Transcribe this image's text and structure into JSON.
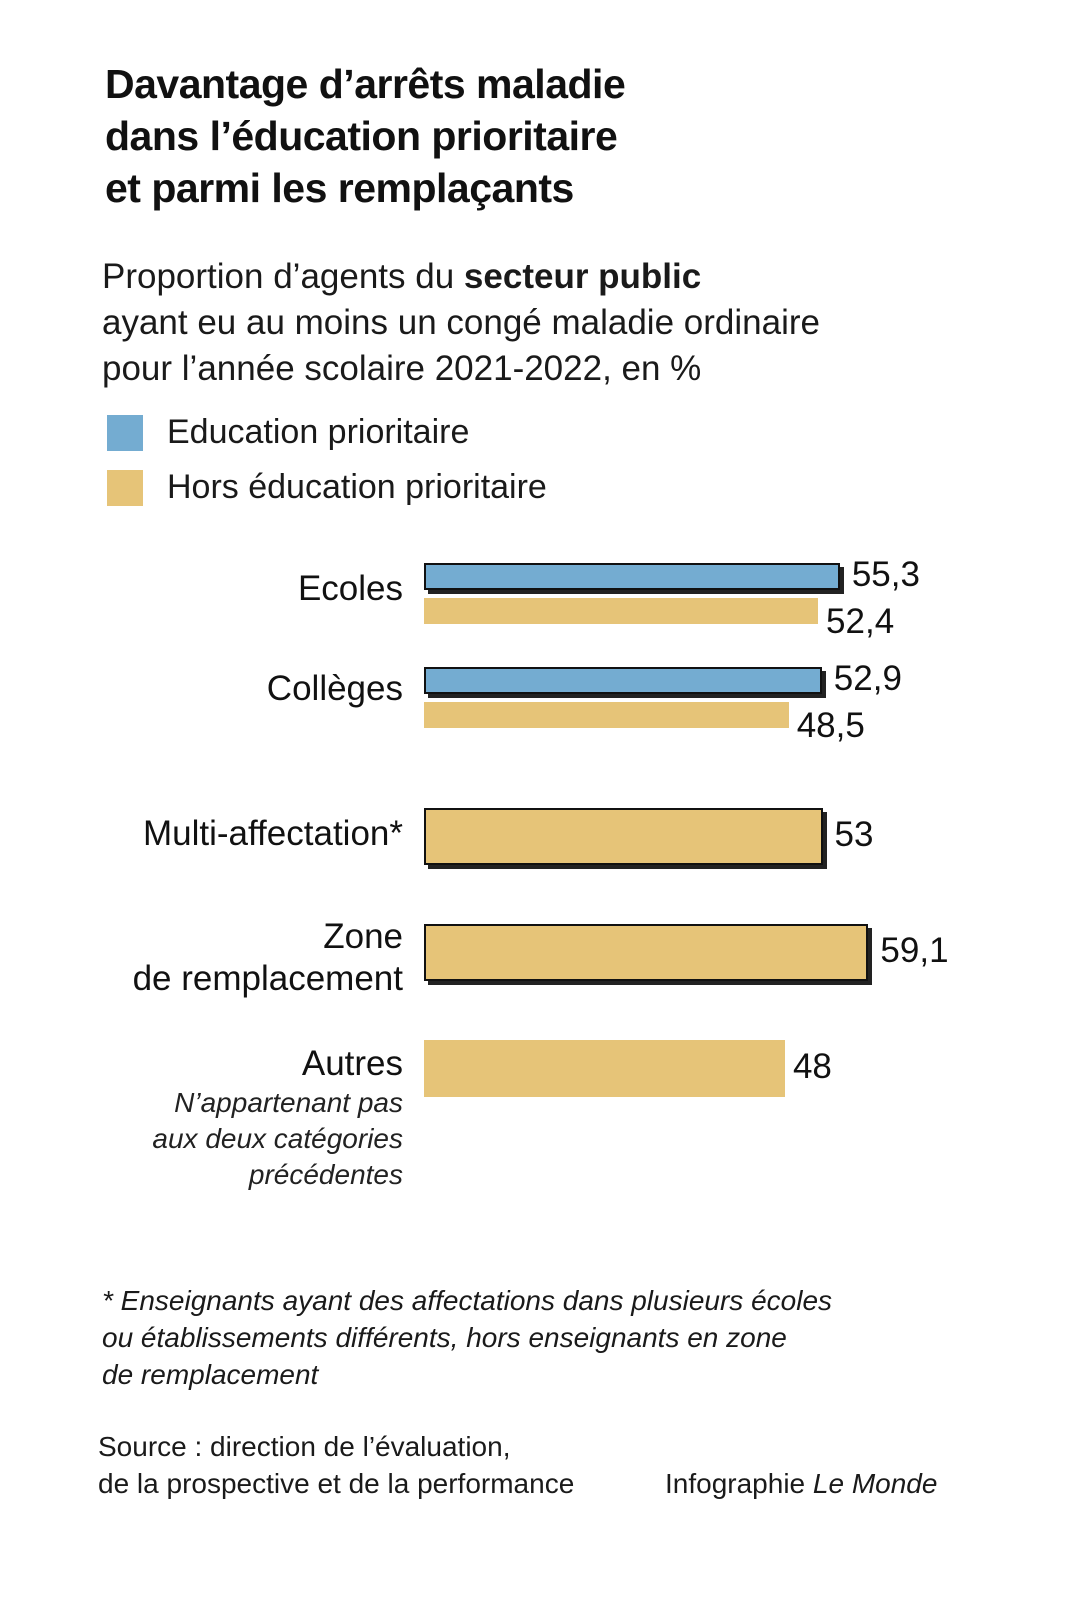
{
  "title_lines": [
    "Davantage d’arrêts maladie",
    "dans l’éducation prioritaire",
    "et parmi les remplaçants"
  ],
  "subtitle": {
    "line1_prefix": "Proportion d’agents du ",
    "line1_bold": "secteur public",
    "line2": "ayant eu au moins un congé maladie ordinaire",
    "line3": "pour l’année scolaire 2021-2022, en %"
  },
  "legend": [
    {
      "label": "Education prioritaire",
      "color": "#74acd1"
    },
    {
      "label": "Hors éducation prioritaire",
      "color": "#e6c478"
    }
  ],
  "chart_data": {
    "type": "bar",
    "orientation": "horizontal",
    "unit": "%",
    "categories": [
      {
        "label_lines": [
          "Ecoles"
        ],
        "note_lines": []
      },
      {
        "label_lines": [
          "Collèges"
        ],
        "note_lines": []
      },
      {
        "label_lines": [
          "Multi-affectation*"
        ],
        "note_lines": []
      },
      {
        "label_lines": [
          "Zone",
          "de remplacement"
        ],
        "note_lines": []
      },
      {
        "label_lines": [
          "Autres"
        ],
        "note_lines": [
          "N’appartenant pas",
          "aux deux catégories",
          "précédentes"
        ]
      }
    ],
    "series": [
      {
        "name": "Education prioritaire",
        "color": "#74acd1",
        "values": [
          55.3,
          52.9,
          null,
          null,
          null
        ],
        "labels": [
          "55,3",
          "52,9",
          null,
          null,
          null
        ]
      },
      {
        "name": "Hors éducation prioritaire",
        "color": "#e6c478",
        "values": [
          52.4,
          48.5,
          53,
          59.1,
          48
        ],
        "labels": [
          "52,4",
          "48,5",
          "53",
          "59,1",
          "48"
        ]
      }
    ],
    "xlim": [
      0,
      59.1
    ]
  },
  "footnote_lines": [
    "* Enseignants ayant des affectations dans plusieurs écoles",
    "ou établissements différents, hors enseignants en zone",
    "de remplacement"
  ],
  "source_lines": [
    "Source : direction de l’évaluation,",
    "de la prospective et de la performance"
  ],
  "credit": {
    "prefix": "Infographie ",
    "italic": "Le Monde"
  }
}
